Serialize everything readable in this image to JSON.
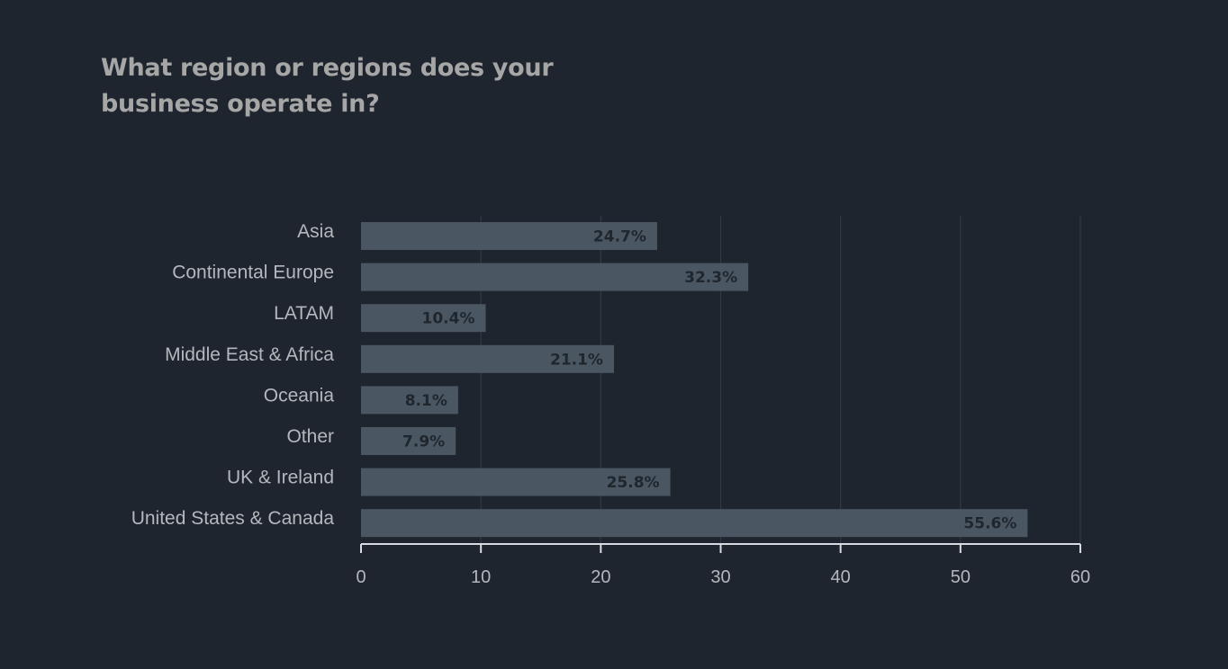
{
  "chart_data": {
    "type": "bar",
    "orientation": "horizontal",
    "title": "What region or regions does your business operate in?",
    "xlabel": "",
    "ylabel": "",
    "categories": [
      "Asia",
      "Continental Europe",
      "LATAM",
      "Middle East & Africa",
      "Oceania",
      "Other",
      "UK & Ireland",
      "United States & Canada"
    ],
    "values": [
      24.7,
      32.3,
      10.4,
      21.1,
      8.1,
      7.9,
      25.8,
      55.6
    ],
    "data_labels": [
      "24.7%",
      "32.3%",
      "10.4%",
      "21.1%",
      "8.1%",
      "7.9%",
      "25.8%",
      "55.6%"
    ],
    "xlim": [
      0,
      60
    ],
    "xticks": [
      0,
      10,
      20,
      30,
      40,
      50,
      60
    ],
    "grid": "vertical",
    "legend": "none",
    "colors": {
      "background": "#1f252e",
      "bar": "#4a5662",
      "title": "#a6a6a6",
      "label_text": "#b4b8bd",
      "data_label_text": "#20262e",
      "gridline": "#2e3944",
      "axis": "#d7dbe0"
    }
  }
}
